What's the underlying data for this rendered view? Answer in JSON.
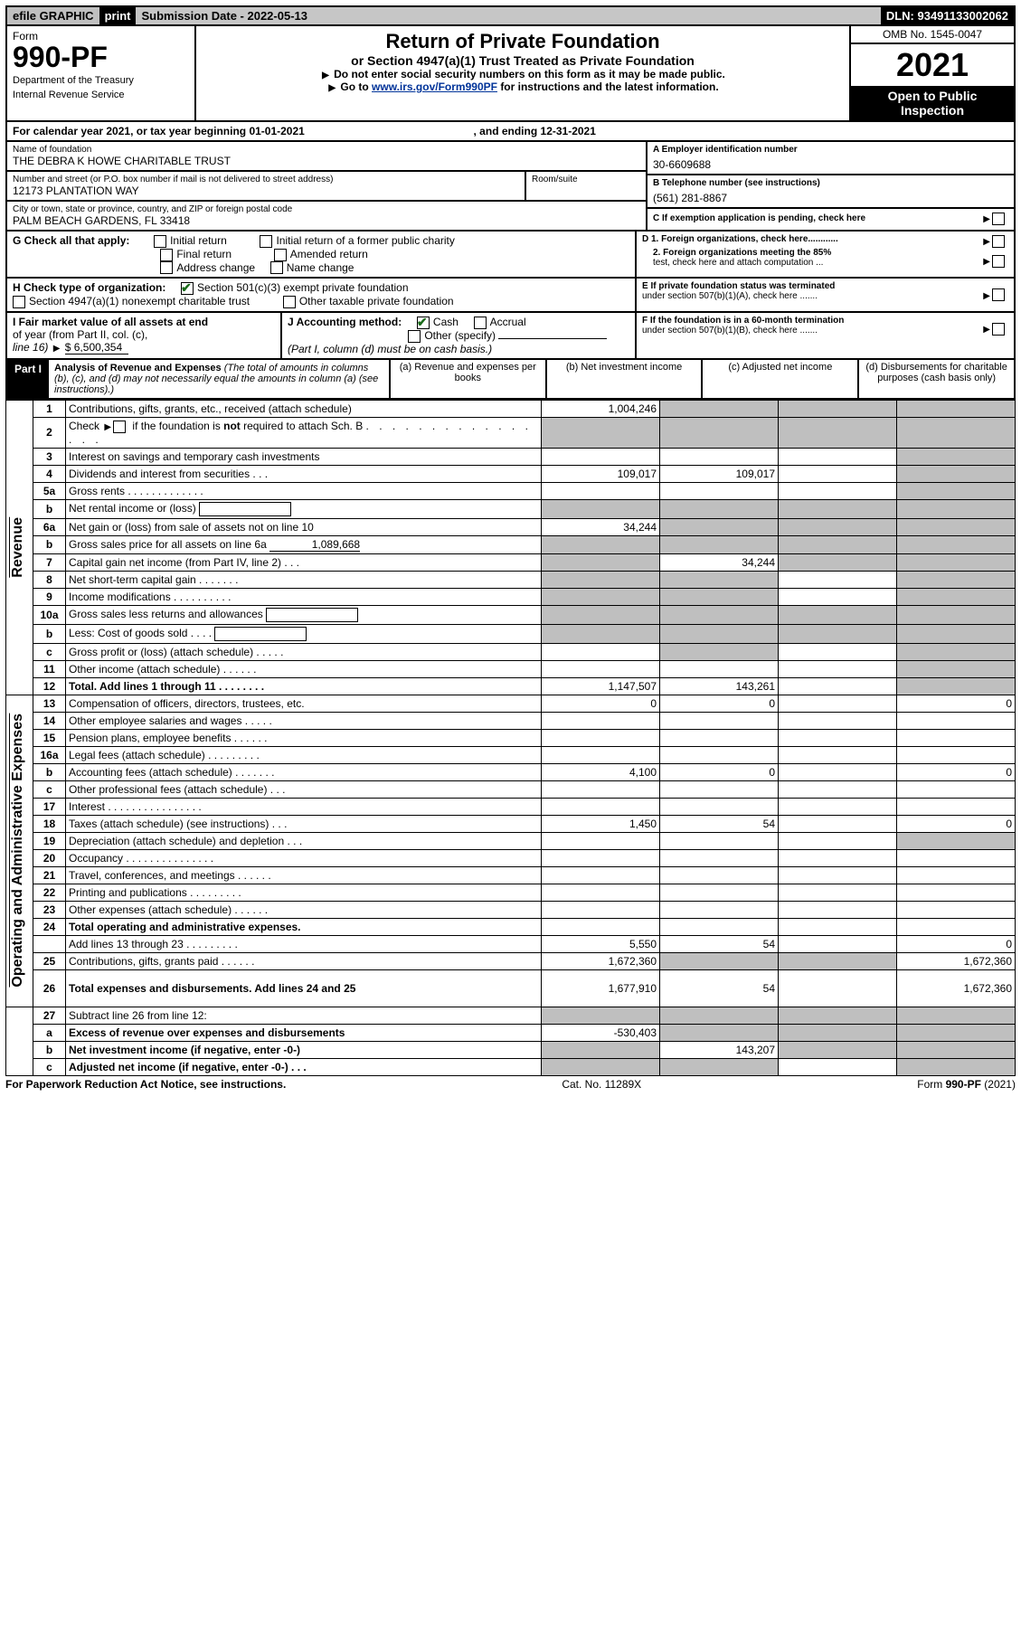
{
  "topbar": {
    "efile": "efile GRAPHIC",
    "print": "print",
    "submission": "Submission Date - 2022-05-13",
    "dln": "DLN: 93491133002062"
  },
  "header": {
    "form_word": "Form",
    "form_num": "990-PF",
    "dept1": "Department of the Treasury",
    "dept2": "Internal Revenue Service",
    "title": "Return of Private Foundation",
    "subtitle": "or Section 4947(a)(1) Trust Treated as Private Foundation",
    "note1": "Do not enter social security numbers on this form as it may be made public.",
    "note2": "Go to ",
    "link": "www.irs.gov/Form990PF",
    "note3": " for instructions and the latest information.",
    "omb": "OMB No. 1545-0047",
    "year": "2021",
    "open1": "Open to Public",
    "open2": "Inspection"
  },
  "tax_year": {
    "line": "For calendar year 2021, or tax year beginning 01-01-2021",
    "ending": ", and ending 12-31-2021"
  },
  "id_block": {
    "name_lbl": "Name of foundation",
    "name": "THE DEBRA K HOWE CHARITABLE TRUST",
    "addr_lbl": "Number and street (or P.O. box number if mail is not delivered to street address)",
    "addr": "12173 PLANTATION WAY",
    "room_lbl": "Room/suite",
    "city_lbl": "City or town, state or province, country, and ZIP or foreign postal code",
    "city": "PALM BEACH GARDENS, FL  33418",
    "a_lbl": "A Employer identification number",
    "a_val": "30-6609688",
    "b_lbl": "B Telephone number (see instructions)",
    "b_val": "(561) 281-8867",
    "c_lbl": "C If exemption application is pending, check here"
  },
  "g": {
    "lbl": "G Check all that apply:",
    "opts": [
      "Initial return",
      "Final return",
      "Address change",
      "Initial return of a former public charity",
      "Amended return",
      "Name change"
    ]
  },
  "d": {
    "d1": "D 1. Foreign organizations, check here............",
    "d2a": "2. Foreign organizations meeting the 85%",
    "d2b": "test, check here and attach computation ..."
  },
  "e": {
    "e1": "E  If private foundation status was terminated",
    "e2": "under section 507(b)(1)(A), check here ......."
  },
  "h": {
    "lbl": "H Check type of organization:",
    "opt1": "Section 501(c)(3) exempt private foundation",
    "opt2": "Section 4947(a)(1) nonexempt charitable trust",
    "opt3": "Other taxable private foundation"
  },
  "i": {
    "lbl1": "I Fair market value of all assets at end",
    "lbl2": "of year (from Part II, col. (c),",
    "lbl3": "line 16)",
    "val": "$  6,500,354"
  },
  "j": {
    "lbl": "J Accounting method:",
    "cash": "Cash",
    "accrual": "Accrual",
    "other": "Other (specify)",
    "note": "(Part I, column (d) must be on cash basis.)"
  },
  "f": {
    "f1": "F  If the foundation is in a 60-month termination",
    "f2": "under section 507(b)(1)(B), check here ......."
  },
  "part1": {
    "label": "Part I",
    "title": "Analysis of Revenue and Expenses",
    "paren": " (The total of amounts in columns (b), (c), and (d) may not necessarily equal the amounts in column (a) (see instructions).)",
    "col_a": "(a)   Revenue and expenses per books",
    "col_b": "(b)   Net investment income",
    "col_c": "(c)   Adjusted net income",
    "col_d": "(d)   Disbursements for charitable purposes (cash basis only)"
  },
  "side": {
    "rev": "Revenue",
    "exp": "Operating and Administrative Expenses"
  },
  "rows": {
    "r1": {
      "n": "1",
      "d": "Contributions, gifts, grants, etc., received (attach schedule)",
      "a": "1,004,246"
    },
    "r2": {
      "n": "2",
      "d": "Check ▶ ☐ if the foundation is not required to attach Sch. B"
    },
    "r3": {
      "n": "3",
      "d": "Interest on savings and temporary cash investments"
    },
    "r4": {
      "n": "4",
      "d": "Dividends and interest from securities  .  .  .",
      "a": "109,017",
      "b": "109,017"
    },
    "r5a": {
      "n": "5a",
      "d": "Gross rents  .  .  .  .  .  .  .  .  .  .  .  .  ."
    },
    "r5b": {
      "n": "b",
      "d": "Net rental income or (loss)"
    },
    "r6a": {
      "n": "6a",
      "d": "Net gain or (loss) from sale of assets not on line 10",
      "a": "34,244"
    },
    "r6b": {
      "n": "b",
      "d": "Gross sales price for all assets on line 6a",
      "inline": "1,089,668"
    },
    "r7": {
      "n": "7",
      "d": "Capital gain net income (from Part IV, line 2)  .  .  .",
      "b": "34,244"
    },
    "r8": {
      "n": "8",
      "d": "Net short-term capital gain  .  .  .  .  .  .  ."
    },
    "r9": {
      "n": "9",
      "d": "Income modifications  .  .  .  .  .  .  .  .  .  ."
    },
    "r10a": {
      "n": "10a",
      "d": "Gross sales less returns and allowances"
    },
    "r10b": {
      "n": "b",
      "d": "Less: Cost of goods sold  .  .  .  ."
    },
    "r10c": {
      "n": "c",
      "d": "Gross profit or (loss) (attach schedule)  .  .  .  .  ."
    },
    "r11": {
      "n": "11",
      "d": "Other income (attach schedule)  .  .  .  .  .  ."
    },
    "r12": {
      "n": "12",
      "d": "Total. Add lines 1 through 11  .  .  .  .  .  .  .  .",
      "a": "1,147,507",
      "b": "143,261"
    },
    "r13": {
      "n": "13",
      "d": "Compensation of officers, directors, trustees, etc.",
      "a": "0",
      "b": "0",
      "dd": "0"
    },
    "r14": {
      "n": "14",
      "d": "Other employee salaries and wages  .  .  .  .  ."
    },
    "r15": {
      "n": "15",
      "d": "Pension plans, employee benefits  .  .  .  .  .  ."
    },
    "r16a": {
      "n": "16a",
      "d": "Legal fees (attach schedule)  .  .  .  .  .  .  .  .  ."
    },
    "r16b": {
      "n": "b",
      "d": "Accounting fees (attach schedule)  .  .  .  .  .  .  .",
      "a": "4,100",
      "b": "0",
      "dd": "0"
    },
    "r16c": {
      "n": "c",
      "d": "Other professional fees (attach schedule)  .  .  ."
    },
    "r17": {
      "n": "17",
      "d": "Interest  .  .  .  .  .  .  .  .  .  .  .  .  .  .  .  ."
    },
    "r18": {
      "n": "18",
      "d": "Taxes (attach schedule) (see instructions)  .  .  .",
      "a": "1,450",
      "b": "54",
      "dd": "0"
    },
    "r19": {
      "n": "19",
      "d": "Depreciation (attach schedule) and depletion  .  .  ."
    },
    "r20": {
      "n": "20",
      "d": "Occupancy  .  .  .  .  .  .  .  .  .  .  .  .  .  .  ."
    },
    "r21": {
      "n": "21",
      "d": "Travel, conferences, and meetings  .  .  .  .  .  ."
    },
    "r22": {
      "n": "22",
      "d": "Printing and publications  .  .  .  .  .  .  .  .  ."
    },
    "r23": {
      "n": "23",
      "d": "Other expenses (attach schedule)  .  .  .  .  .  ."
    },
    "r24": {
      "n": "24",
      "d": "Total operating and administrative expenses."
    },
    "r24b": {
      "n": "",
      "d": "Add lines 13 through 23  .  .  .  .  .  .  .  .  .",
      "a": "5,550",
      "b": "54",
      "dd": "0"
    },
    "r25": {
      "n": "25",
      "d": "Contributions, gifts, grants paid  .  .  .  .  .  .",
      "a": "1,672,360",
      "dd": "1,672,360"
    },
    "r26": {
      "n": "26",
      "d": "Total expenses and disbursements. Add lines 24 and 25",
      "a": "1,677,910",
      "b": "54",
      "dd": "1,672,360"
    },
    "r27": {
      "n": "27",
      "d": "Subtract line 26 from line 12:"
    },
    "r27a": {
      "n": "a",
      "d": "Excess of revenue over expenses and disbursements",
      "a": "-530,403"
    },
    "r27b": {
      "n": "b",
      "d": "Net investment income (if negative, enter -0-)",
      "b": "143,207"
    },
    "r27c": {
      "n": "c",
      "d": "Adjusted net income (if negative, enter -0-)  .  .  ."
    }
  },
  "footer": {
    "left": "For Paperwork Reduction Act Notice, see instructions.",
    "mid": "Cat. No. 11289X",
    "right": "Form 990-PF (2021)"
  },
  "colors": {
    "shade": "#bfbfbf",
    "link": "#003399",
    "check": "#1a6b1a"
  }
}
